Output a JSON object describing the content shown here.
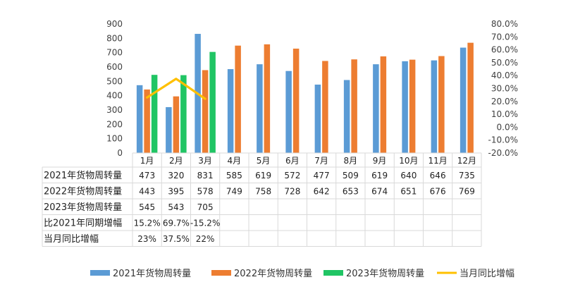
{
  "chart_data": {
    "type": "bar",
    "categories": [
      "1月",
      "2月",
      "3月",
      "4月",
      "5月",
      "6月",
      "7月",
      "8月",
      "9月",
      "10月",
      "11月",
      "12月"
    ],
    "series": [
      {
        "name": "2021年货物周转量",
        "kind": "bar",
        "axis": "left",
        "color": "#5B9BD5",
        "values": [
          473,
          320,
          831,
          585,
          619,
          572,
          477,
          509,
          619,
          640,
          646,
          735
        ]
      },
      {
        "name": "2022年货物周转量",
        "kind": "bar",
        "axis": "left",
        "color": "#ED7D31",
        "values": [
          443,
          395,
          578,
          749,
          758,
          728,
          642,
          653,
          674,
          651,
          676,
          769
        ]
      },
      {
        "name": "2023年货物周转量",
        "kind": "bar",
        "axis": "left",
        "color": "#20C564",
        "values": [
          545,
          543,
          705,
          null,
          null,
          null,
          null,
          null,
          null,
          null,
          null,
          null
        ]
      },
      {
        "name": "当月同比增幅",
        "kind": "line",
        "axis": "right",
        "color": "#FFC000",
        "values": [
          23,
          37.5,
          22,
          null,
          null,
          null,
          null,
          null,
          null,
          null,
          null,
          null
        ]
      }
    ],
    "y_left": {
      "range": [
        0,
        900
      ],
      "ticks": [
        "0",
        "100",
        "200",
        "300",
        "400",
        "500",
        "600",
        "700",
        "800",
        "900"
      ]
    },
    "y_right": {
      "range": [
        -20,
        80
      ],
      "unit": "%",
      "ticks": [
        "-20.0%",
        "-10.0%",
        "0.0%",
        "10.0%",
        "20.0%",
        "30.0%",
        "40.0%",
        "50.0%",
        "60.0%",
        "70.0%",
        "80.0%"
      ]
    },
    "data_table": {
      "rows": [
        {
          "label": "2021年货物周转量",
          "cells": [
            "473",
            "320",
            "831",
            "585",
            "619",
            "572",
            "477",
            "509",
            "619",
            "640",
            "646",
            "735"
          ]
        },
        {
          "label": "2022年货物周转量",
          "cells": [
            "443",
            "395",
            "578",
            "749",
            "758",
            "728",
            "642",
            "653",
            "674",
            "651",
            "676",
            "769"
          ]
        },
        {
          "label": "2023年货物周转量",
          "cells": [
            "545",
            "543",
            "705",
            "",
            "",
            "",
            "",
            "",
            "",
            "",
            "",
            ""
          ]
        },
        {
          "label": "比2021年同期增幅",
          "cells": [
            "15.2%",
            "69.7%",
            "-15.2%",
            "",
            "",
            "",
            "",
            "",
            "",
            "",
            "",
            ""
          ]
        },
        {
          "label": "当月同比增幅",
          "cells": [
            "23%",
            "37.5%",
            "22%",
            "",
            "",
            "",
            "",
            "",
            "",
            "",
            "",
            ""
          ]
        }
      ]
    },
    "legend": {
      "position": "bottom",
      "items": [
        "2021年货物周转量",
        "2022年货物周转量",
        "2023年货物周转量",
        "当月同比增幅"
      ]
    },
    "grid": false
  }
}
